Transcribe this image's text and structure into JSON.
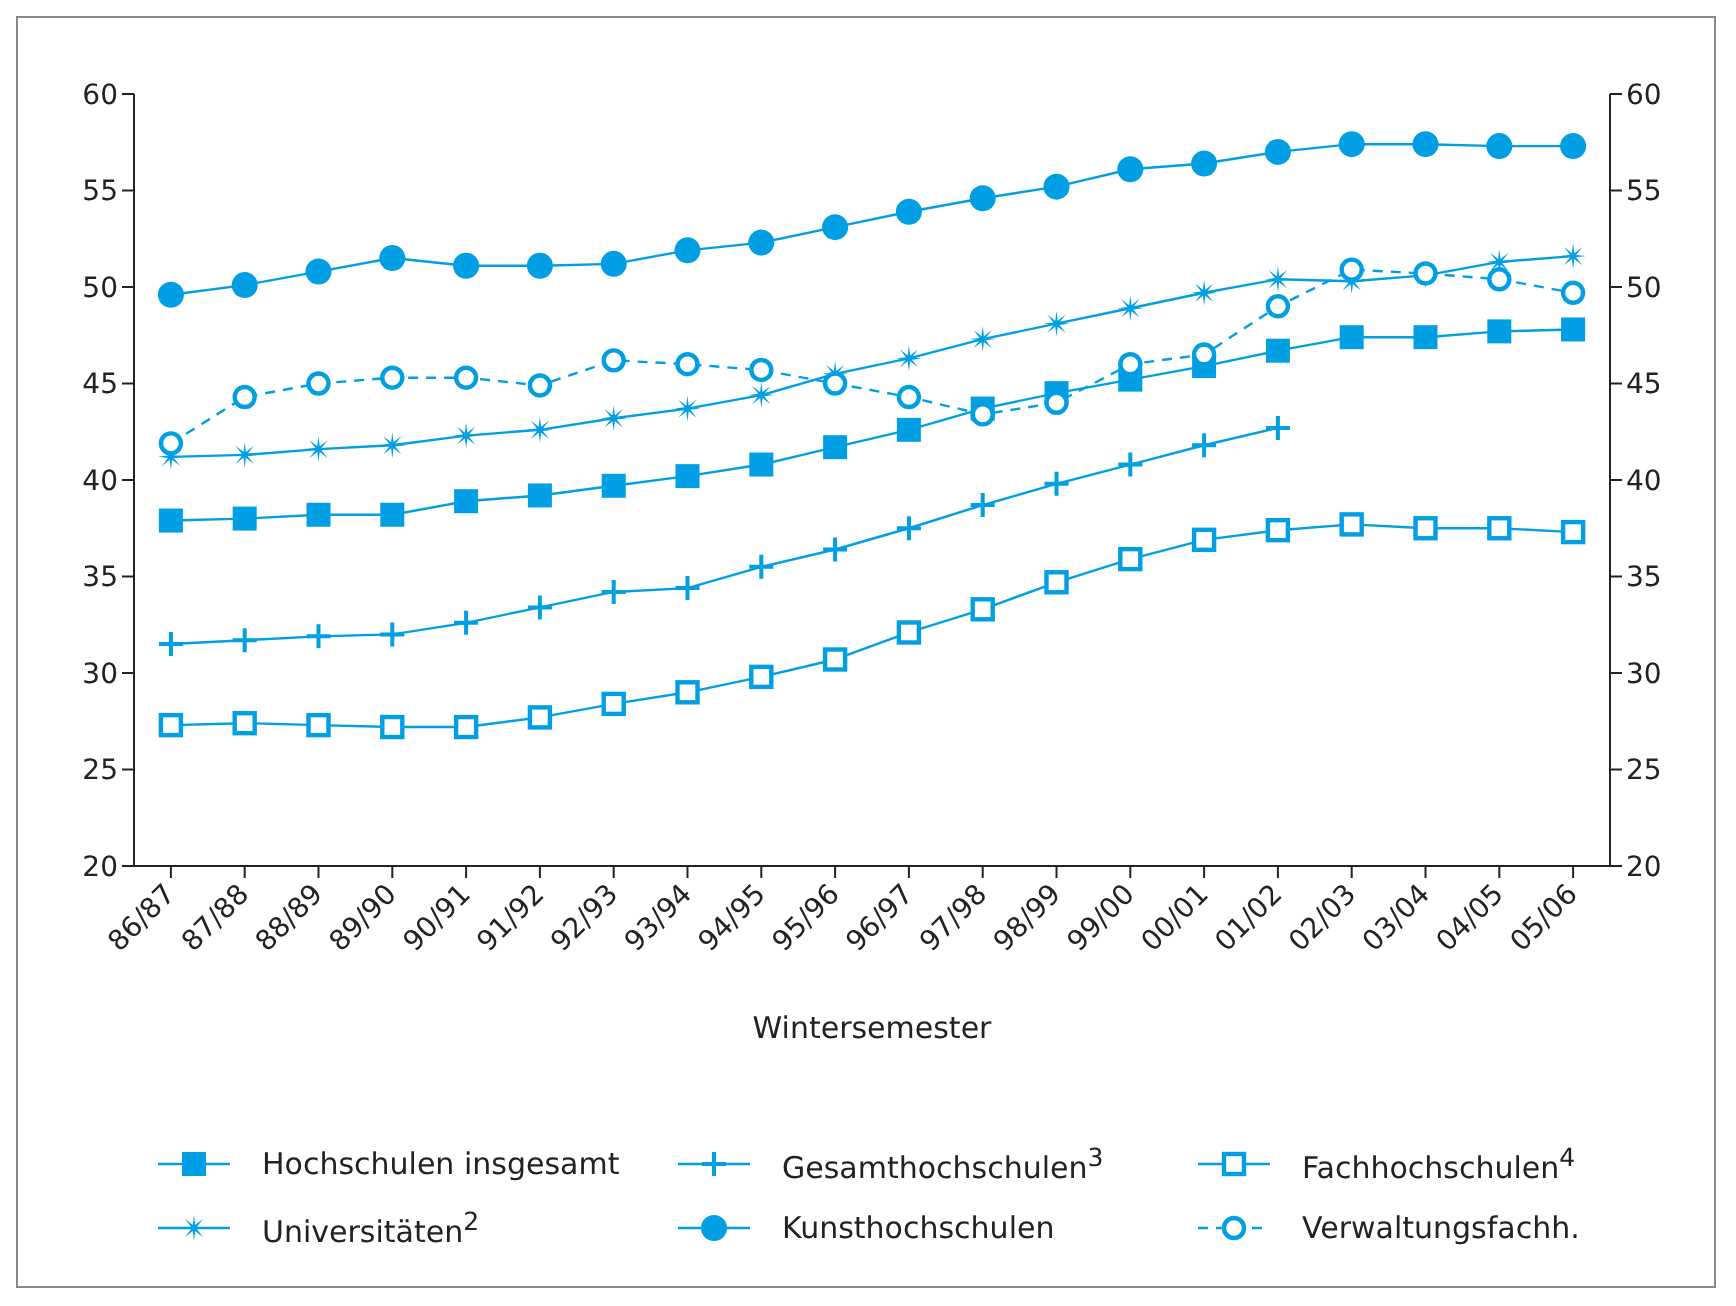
{
  "chart_data": {
    "type": "line",
    "xlabel": "Wintersemester",
    "categories": [
      "86/87",
      "87/88",
      "88/89",
      "89/90",
      "90/91",
      "91/92",
      "92/93",
      "93/94",
      "94/95",
      "95/96",
      "96/97",
      "97/98",
      "98/99",
      "99/00",
      "00/01",
      "01/02",
      "02/03",
      "03/04",
      "04/05",
      "05/06"
    ],
    "ylim": [
      20,
      60
    ],
    "yticks": [
      20,
      25,
      30,
      35,
      40,
      45,
      50,
      55,
      60
    ],
    "y2lim": [
      20,
      60
    ],
    "y2ticks": [
      20,
      25,
      30,
      35,
      40,
      45,
      50,
      55,
      60
    ],
    "legend": "bottom",
    "series": [
      {
        "name": "Hochschulen insgesamt",
        "color": "#009fe3",
        "marker": "square",
        "line_style": "solid",
        "values": [
          37.9,
          38.0,
          38.2,
          38.2,
          38.9,
          39.2,
          39.7,
          40.2,
          40.8,
          41.7,
          42.6,
          43.7,
          44.5,
          45.2,
          45.9,
          46.7,
          47.4,
          47.4,
          47.7,
          47.8
        ]
      },
      {
        "name": "Gesamthochschulen$^{3}$",
        "color": "#009fe3",
        "marker": "cross",
        "line_style": "solid",
        "values": [
          31.5,
          31.7,
          31.9,
          32.0,
          32.6,
          33.4,
          34.2,
          34.4,
          35.5,
          36.4,
          37.5,
          38.7,
          39.8,
          40.8,
          41.8,
          42.7,
          null,
          null,
          null,
          null
        ]
      },
      {
        "name": "Fachhochschulen$^{4}$",
        "color": "#009fe3",
        "marker": "square-open",
        "line_style": "solid",
        "values": [
          27.3,
          27.4,
          27.3,
          27.2,
          27.2,
          27.7,
          28.4,
          29.0,
          29.8,
          30.7,
          32.1,
          33.3,
          34.7,
          35.9,
          36.9,
          37.4,
          37.7,
          37.5,
          37.5,
          37.3
        ]
      },
      {
        "name": "Universitäten$^{2}$",
        "color": "#009fe3",
        "marker": "star",
        "line_style": "solid",
        "values": [
          41.2,
          41.3,
          41.6,
          41.8,
          42.3,
          42.6,
          43.2,
          43.7,
          44.4,
          45.5,
          46.3,
          47.3,
          48.1,
          48.9,
          49.7,
          50.4,
          50.3,
          50.6,
          51.3,
          51.6
        ]
      },
      {
        "name": "Kunsthochschulen",
        "color": "#009fe3",
        "marker": "circle",
        "line_style": "solid",
        "values": [
          49.6,
          50.1,
          50.8,
          51.5,
          51.1,
          51.1,
          51.2,
          51.9,
          52.3,
          53.1,
          53.9,
          54.6,
          55.2,
          56.1,
          56.4,
          57.0,
          57.4,
          57.4,
          57.3,
          57.3
        ]
      },
      {
        "name": "Verwaltungsfachh.",
        "color": "#009fe3",
        "marker": "circle-open",
        "line_style": "dashed",
        "values": [
          41.9,
          44.3,
          45.0,
          45.3,
          45.3,
          44.9,
          46.2,
          46.0,
          45.7,
          45.0,
          44.3,
          43.4,
          44.0,
          46.0,
          46.5,
          49.0,
          50.9,
          50.7,
          50.4,
          49.7
        ]
      }
    ]
  }
}
